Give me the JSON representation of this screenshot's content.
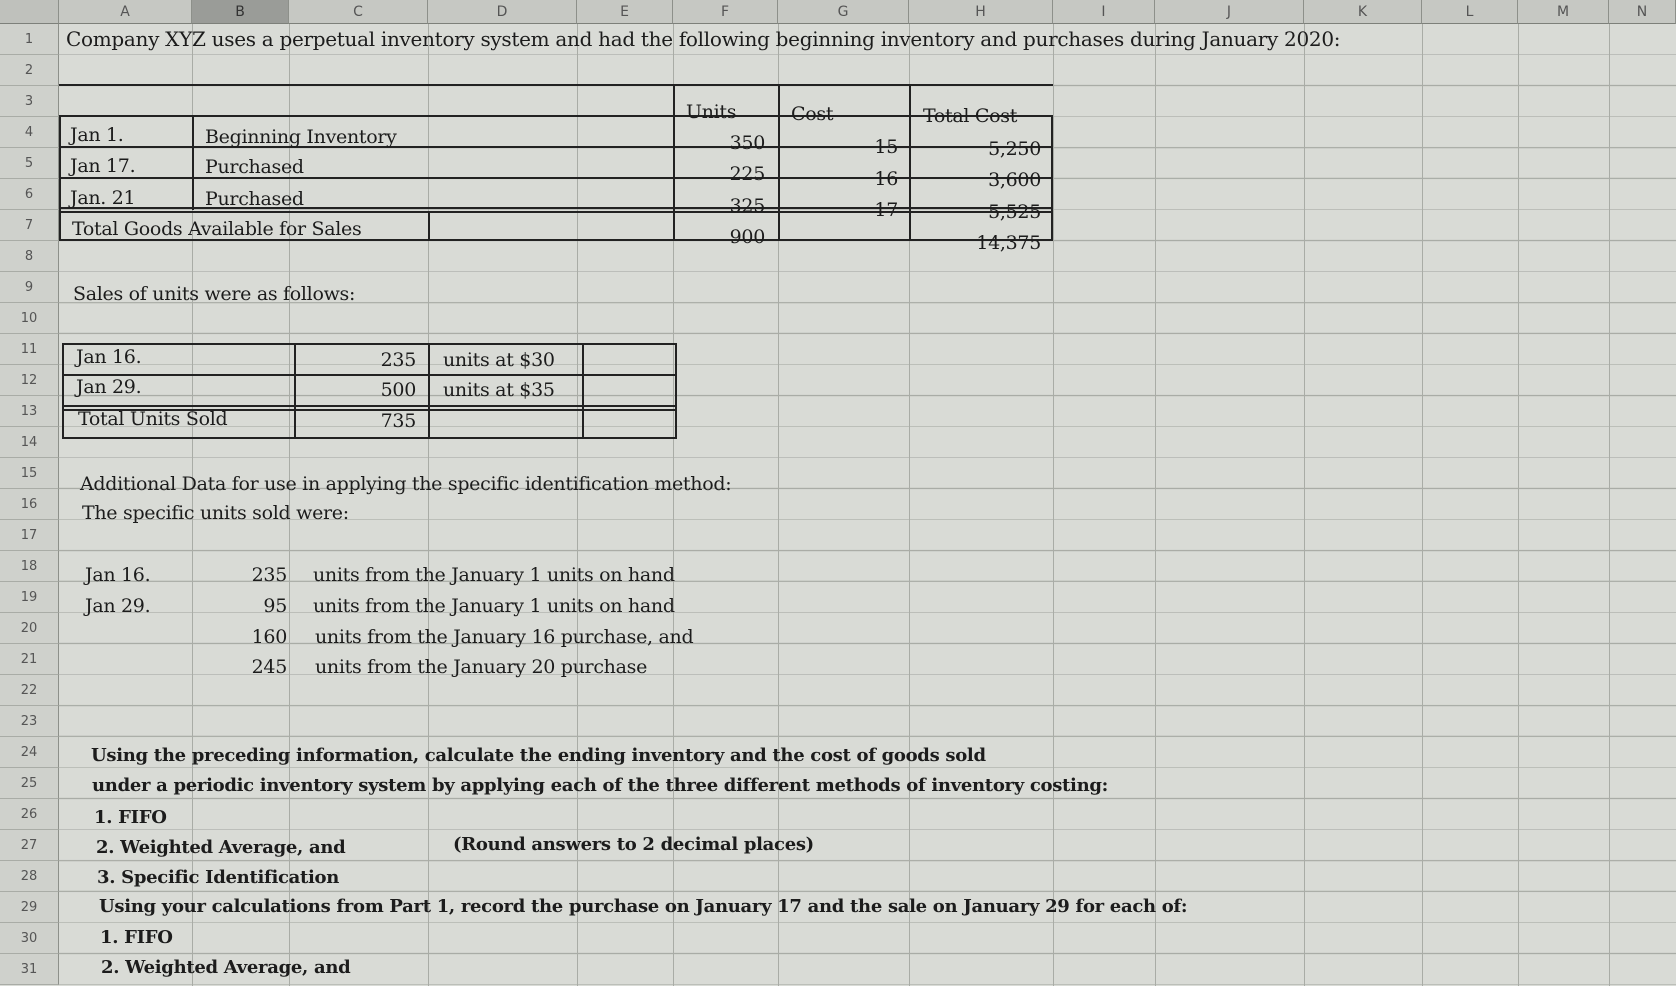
{
  "columns": [
    "A",
    "B",
    "C",
    "D",
    "E",
    "F",
    "G",
    "H",
    "I",
    "J",
    "K",
    "L",
    "M",
    "N"
  ],
  "selected_column": "B",
  "row_count": 31,
  "sheet": {
    "intro": "Company XYZ uses a perpetual inventory system and had the following beginning inventory and purchases during January 2020:",
    "inventory_table": {
      "headers": {
        "units": "Units",
        "cost": "Cost",
        "total_cost": "Total Cost"
      },
      "rows": [
        {
          "date": "Jan 1.",
          "desc": "Beginning Inventory",
          "units": "350",
          "cost": "15",
          "total": "5,250"
        },
        {
          "date": "Jan 17.",
          "desc": "Purchased",
          "units": "225",
          "cost": "16",
          "total": "3,600"
        },
        {
          "date": "Jan. 21",
          "desc": "Purchased",
          "units": "325",
          "cost": "17",
          "total": "5,525"
        }
      ],
      "total": {
        "label": "Total Goods Available for Sales",
        "units": "900",
        "total": "14,375"
      }
    },
    "sales_intro": "Sales of units were as follows:",
    "sales_table": {
      "rows": [
        {
          "date": "Jan 16.",
          "units": "235",
          "price": "units at $30"
        },
        {
          "date": "Jan 29.",
          "units": "500",
          "price": "units at $35"
        }
      ],
      "total": {
        "label": "Total Units Sold",
        "units": "735"
      }
    },
    "specific_intro_1": "Additional Data for use in applying the specific identification method:",
    "specific_intro_2": "The specific units sold were:",
    "specific_rows": [
      {
        "date": "Jan 16.",
        "units": "235",
        "text": "units from the January 1 units on hand"
      },
      {
        "date": "Jan 29.",
        "units": "95",
        "text": "units from the January 1 units on hand"
      },
      {
        "date": "",
        "units": "160",
        "text": "units from the January 16 purchase, and"
      },
      {
        "date": "",
        "units": "245",
        "text": "units from the January 20 purchase"
      }
    ],
    "instructions": {
      "line1": "Using the preceding information, calculate the ending inventory and the cost of goods sold",
      "line2": "under a periodic inventory system by applying each of the three different methods of inventory costing:",
      "m1": "1. FIFO",
      "m2": "2. Weighted Average, and",
      "round_note": "(Round answers to 2 decimal places)",
      "m3": "3. Specific Identification",
      "part2": "Using your calculations from Part 1, record the purchase on January 17 and the sale on January 29 for each of:",
      "p1": "1. FIFO",
      "p2": "2. Weighted Average, and"
    }
  }
}
